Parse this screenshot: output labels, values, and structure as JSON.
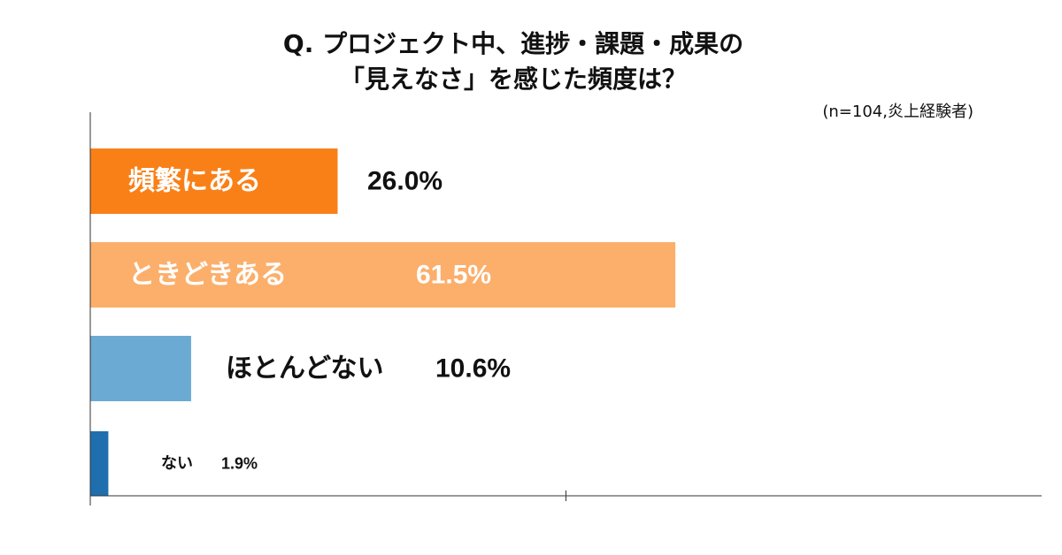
{
  "title": {
    "line1": "Q. プロジェクト中、進捗・課題・成果の",
    "line2": "「見えなさ」を感じた頻度は？"
  },
  "note": "(n=104,炎上経験者)",
  "colors": {
    "bar1": "#F98017",
    "bar2": "#FBAF6B",
    "bar3": "#6BAAD3",
    "bar4": "#1F6FAE",
    "axis": "#333333"
  },
  "chart_data": {
    "type": "bar",
    "orientation": "horizontal",
    "categories": [
      "頻繁にある",
      "ときどきある",
      "ほとんどない",
      "ない"
    ],
    "values": [
      26.0,
      61.5,
      10.6,
      1.9
    ],
    "value_labels": [
      "26.0%",
      "61.5%",
      "10.6%",
      "1.9%"
    ],
    "unit": "%",
    "xlim": [
      0,
      100
    ],
    "grid": false,
    "legend": "none"
  }
}
